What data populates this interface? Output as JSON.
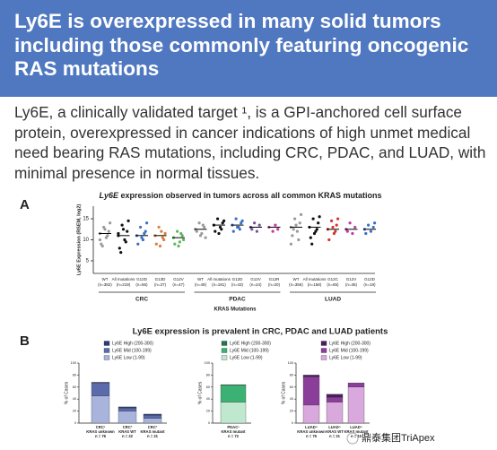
{
  "header": {
    "title": "Ly6E is overexpressed in many solid tumors including those commonly featuring oncogenic RAS mutations"
  },
  "body": {
    "text": "Ly6E, a clinically validated target ¹, is a GPI-anchored cell surface protein, overexpressed in cancer indications of high unmet medical need bearing RAS mutations, including CRC, PDAC, and LUAD, with minimal presence in normal tissues."
  },
  "panel_a": {
    "label": "A",
    "title_italic": "Ly6E",
    "title": " expression observed in tumors across all common KRAS mutations",
    "ylabel": "Ly6E Expression (RSEM, log2)",
    "xlabel": "KRAS Mutations",
    "ylim": [
      2,
      18
    ],
    "yticks": [
      5,
      10,
      15
    ],
    "groups": [
      {
        "name": "CRC",
        "categories": [
          {
            "name": "WT",
            "n": "(n=382)",
            "color": "#9a9a9a",
            "median": 11.5,
            "points": [
              11.5,
              12,
              10.5,
              13,
              9,
              14,
              11,
              12.5,
              8.5,
              10
            ]
          },
          {
            "name": "All mutations",
            "n": "(n=219)",
            "color": "#111111",
            "median": 11,
            "points": [
              11,
              12,
              10,
              13.5,
              8,
              14.5,
              9.5,
              12.5,
              7,
              11.5
            ]
          },
          {
            "name": "G12D",
            "n": "(n=56)",
            "color": "#3a6fc9",
            "median": 11,
            "points": [
              11,
              12,
              10,
              13,
              9,
              14,
              11.5,
              10.5
            ]
          },
          {
            "name": "G13D",
            "n": "(n=37)",
            "color": "#e07b39",
            "median": 11,
            "points": [
              11,
              10,
              12,
              13,
              9,
              11.5,
              10.5,
              8.5
            ]
          },
          {
            "name": "G12V",
            "n": "(n=47)",
            "color": "#5cb85c",
            "median": 10.5,
            "points": [
              10.5,
              11,
              9.5,
              12,
              9,
              10,
              11.5,
              8.5
            ]
          }
        ]
      },
      {
        "name": "PDAC",
        "categories": [
          {
            "name": "WT",
            "n": "(n=49)",
            "color": "#9a9a9a",
            "median": 12.5,
            "points": [
              12.5,
              13,
              11.5,
              14,
              12,
              10.5,
              13.5,
              11
            ]
          },
          {
            "name": "All mutations",
            "n": "(n=181)",
            "color": "#111111",
            "median": 13.5,
            "points": [
              13.5,
              14,
              13,
              15,
              12,
              14.5,
              12.5,
              11.5
            ]
          },
          {
            "name": "G12D",
            "n": "(n=43)",
            "color": "#3a6fc9",
            "median": 13.5,
            "points": [
              13.5,
              14,
              13,
              15,
              12,
              14.5,
              12.5,
              13
            ]
          },
          {
            "name": "G12V",
            "n": "(n=24)",
            "color": "#7b4fa0",
            "median": 13,
            "points": [
              13,
              13.5,
              12,
              14,
              12.5
            ]
          },
          {
            "name": "G12R",
            "n": "(n=20)",
            "color": "#c0399c",
            "median": 13,
            "points": [
              13,
              12.5,
              13.5,
              12
            ]
          }
        ]
      },
      {
        "name": "LUAD",
        "categories": [
          {
            "name": "WT",
            "n": "(n=356)",
            "color": "#9a9a9a",
            "median": 13,
            "points": [
              13,
              14,
              12,
              15,
              11,
              16,
              10,
              13.5,
              12.5,
              9
            ]
          },
          {
            "name": "All mutations",
            "n": "(n=158)",
            "color": "#111111",
            "median": 13,
            "points": [
              13,
              14,
              12,
              15,
              10.5,
              15.5,
              12.5,
              11.5,
              9
            ]
          },
          {
            "name": "G12C",
            "n": "(n=65)",
            "color": "#d9352b",
            "median": 12.5,
            "points": [
              12.5,
              13.5,
              11.5,
              14.5,
              10,
              15,
              12,
              13
            ]
          },
          {
            "name": "G12V",
            "n": "(n=36)",
            "color": "#c0399c",
            "median": 12.5,
            "points": [
              12.5,
              13,
              11.5,
              14,
              12
            ]
          },
          {
            "name": "G12D",
            "n": "(n=19)",
            "color": "#3a6fc9",
            "median": 12.5,
            "points": [
              12.5,
              13,
              12,
              13.5,
              11.5,
              14
            ]
          }
        ]
      }
    ]
  },
  "panel_b": {
    "label": "B",
    "title": "Ly6E expression is prevalent in CRC, PDAC and LUAD patients",
    "charts": [
      {
        "ylabel": "% of Cases",
        "ylim": [
          0,
          100
        ],
        "yticks": [
          0,
          20,
          40,
          60,
          80,
          100
        ],
        "categories": [
          [
            "CRC¹",
            "KRAS unknown",
            "n = 76"
          ],
          [
            "CRC²",
            "KRAS WT",
            "n = 22"
          ],
          [
            "CRC²",
            "KRAS mutant",
            "n = 21"
          ]
        ],
        "series": [
          {
            "name": "Ly6E High (200-300)",
            "color": "#2c3a7a",
            "values": [
              1,
              2,
              2
            ]
          },
          {
            "name": "Ly6E Mid (100-199)",
            "color": "#5a6aaa",
            "values": [
              22,
              5,
              5
            ]
          },
          {
            "name": "Ly6E Low (1-99)",
            "color": "#a8b4dc",
            "values": [
              45,
              20,
              8
            ]
          }
        ]
      },
      {
        "ylabel": "% of Cases",
        "ylim": [
          0,
          100
        ],
        "yticks": [
          0,
          20,
          40,
          60,
          80,
          100
        ],
        "categories": [
          [
            "PDAC³",
            "KRAS mutant",
            "n = 72"
          ]
        ],
        "series": [
          {
            "name": "Ly6E High (200-300)",
            "color": "#1e7a4a",
            "values": [
              1
            ]
          },
          {
            "name": "Ly6E Mid (100-199)",
            "color": "#3bb273",
            "values": [
              28
            ]
          },
          {
            "name": "Ly6E Low (1-99)",
            "color": "#bfe8cf",
            "values": [
              35
            ]
          }
        ]
      },
      {
        "ylabel": "% of Cases",
        "ylim": [
          0,
          100
        ],
        "yticks": [
          0,
          20,
          40,
          60,
          80,
          100
        ],
        "categories": [
          [
            "LUAD⁴",
            "KRAS unknown",
            "n = 76"
          ],
          [
            "LUAD⁵",
            "KRAS WT",
            "n = 21"
          ],
          [
            "LUAD⁵",
            "KRAS mutant",
            "n = 15"
          ]
        ],
        "series": [
          {
            "name": "Ly6E High (200-300)",
            "color": "#4a1e5e",
            "values": [
              3,
              5,
              0
            ]
          },
          {
            "name": "Ly6E Mid (100-199)",
            "color": "#8a3e9a",
            "values": [
              47,
              8,
              7
            ]
          },
          {
            "name": "Ly6E Low (1-99)",
            "color": "#d9a8dc",
            "values": [
              30,
              35,
              60
            ]
          }
        ]
      }
    ]
  },
  "watermark": "鼎泰集团TriApex"
}
